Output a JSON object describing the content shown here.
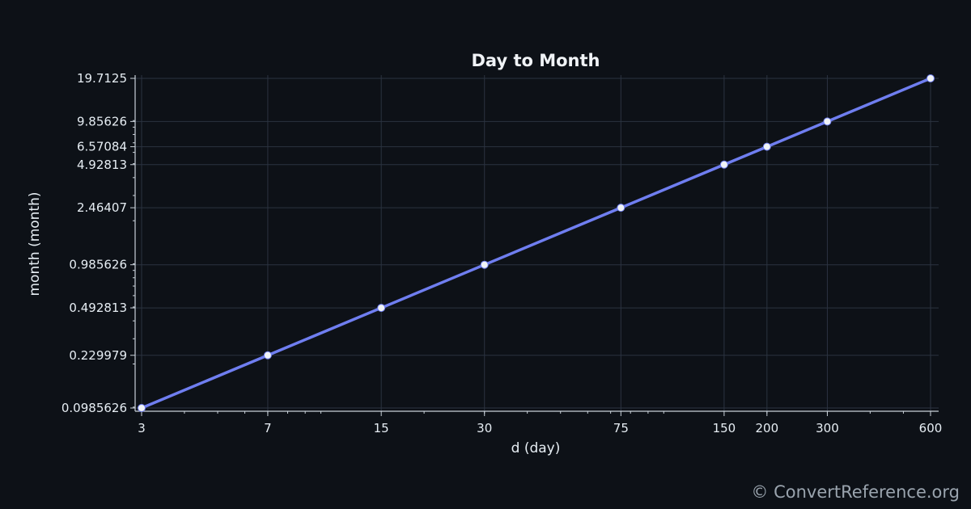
{
  "watermark": "© ConvertReference.org",
  "colors": {
    "background": "#0d1117",
    "line": "#6f7ef0",
    "marker": "#f0f3f6",
    "grid": "#2b3340",
    "axis": "#c9d1d9"
  },
  "chart_data": {
    "type": "line",
    "title": "Day to Month",
    "xlabel": "d (day)",
    "ylabel": "month (month)",
    "x_scale": "log",
    "y_scale": "log",
    "grid": true,
    "x_ticks": [
      "3",
      "7",
      "15",
      "30",
      "75",
      "150",
      "200",
      "300",
      "600"
    ],
    "y_ticks": [
      "0.0985626",
      "0.229979",
      "0.492813",
      "0.985626",
      "2.46407",
      "4.92813",
      "6.57084",
      "9.85626",
      "19.7125"
    ],
    "xlim": [
      3,
      600
    ],
    "ylim": [
      0.0985626,
      19.7125
    ],
    "series": [
      {
        "x": [
          3,
          7,
          15,
          30,
          75,
          150,
          200,
          300,
          600
        ],
        "y": [
          0.0985626,
          0.229979,
          0.492813,
          0.985626,
          2.46407,
          4.92813,
          6.57084,
          9.85626,
          19.7125
        ]
      }
    ]
  }
}
